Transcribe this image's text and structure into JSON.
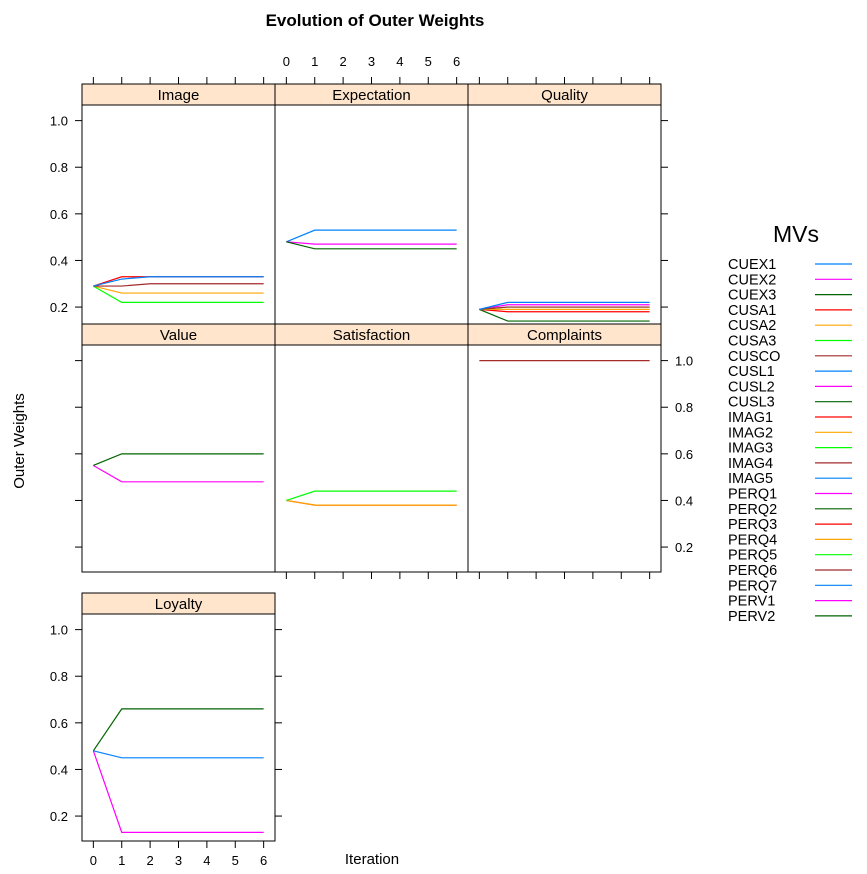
{
  "chart_data": {
    "type": "line",
    "title": "Evolution of Outer Weights",
    "xlabel": "Iteration",
    "ylabel": "Outer Weights",
    "x_ticks": [
      0,
      1,
      2,
      3,
      4,
      5,
      6
    ],
    "y_ticks": [
      0.2,
      0.4,
      0.6,
      0.8,
      1.0
    ],
    "xlim": [
      -0.4,
      6.4
    ],
    "ylim": [
      0.093,
      1.067
    ],
    "strip_color": "#ffe5cc",
    "legend": {
      "title": "MVs",
      "placement": "right"
    },
    "series_styles": [
      {
        "name": "CUEX1",
        "color": "#0080ff"
      },
      {
        "name": "CUEX2",
        "color": "#ff00ff"
      },
      {
        "name": "CUEX3",
        "color": "#006400"
      },
      {
        "name": "CUSA1",
        "color": "#ff0000"
      },
      {
        "name": "CUSA2",
        "color": "#ffa500"
      },
      {
        "name": "CUSA3",
        "color": "#00ff00"
      },
      {
        "name": "CUSCO",
        "color": "#a52a2a"
      },
      {
        "name": "CUSL1",
        "color": "#0080ff"
      },
      {
        "name": "CUSL2",
        "color": "#ff00ff"
      },
      {
        "name": "CUSL3",
        "color": "#006400"
      },
      {
        "name": "IMAG1",
        "color": "#ff0000"
      },
      {
        "name": "IMAG2",
        "color": "#ffa500"
      },
      {
        "name": "IMAG3",
        "color": "#00ff00"
      },
      {
        "name": "IMAG4",
        "color": "#a52a2a"
      },
      {
        "name": "IMAG5",
        "color": "#0080ff"
      },
      {
        "name": "PERQ1",
        "color": "#ff00ff"
      },
      {
        "name": "PERQ2",
        "color": "#006400"
      },
      {
        "name": "PERQ3",
        "color": "#ff0000"
      },
      {
        "name": "PERQ4",
        "color": "#ffa500"
      },
      {
        "name": "PERQ5",
        "color": "#00ff00"
      },
      {
        "name": "PERQ6",
        "color": "#a52a2a"
      },
      {
        "name": "PERQ7",
        "color": "#0080ff"
      },
      {
        "name": "PERV1",
        "color": "#ff00ff"
      },
      {
        "name": "PERV2",
        "color": "#006400"
      }
    ],
    "panels": [
      {
        "label": "Image",
        "series": [
          {
            "name": "IMAG1",
            "values": [
              0.29,
              0.33,
              0.33,
              0.33,
              0.33,
              0.33,
              0.33
            ]
          },
          {
            "name": "IMAG2",
            "values": [
              0.29,
              0.26,
              0.26,
              0.26,
              0.26,
              0.26,
              0.26
            ]
          },
          {
            "name": "IMAG3",
            "values": [
              0.29,
              0.22,
              0.22,
              0.22,
              0.22,
              0.22,
              0.22
            ]
          },
          {
            "name": "IMAG4",
            "values": [
              0.29,
              0.29,
              0.3,
              0.3,
              0.3,
              0.3,
              0.3
            ]
          },
          {
            "name": "IMAG5",
            "values": [
              0.29,
              0.32,
              0.33,
              0.33,
              0.33,
              0.33,
              0.33
            ]
          }
        ]
      },
      {
        "label": "Expectation",
        "series": [
          {
            "name": "CUEX1",
            "values": [
              0.48,
              0.53,
              0.53,
              0.53,
              0.53,
              0.53,
              0.53
            ]
          },
          {
            "name": "CUEX2",
            "values": [
              0.48,
              0.47,
              0.47,
              0.47,
              0.47,
              0.47,
              0.47
            ]
          },
          {
            "name": "CUEX3",
            "values": [
              0.48,
              0.45,
              0.45,
              0.45,
              0.45,
              0.45,
              0.45
            ]
          }
        ]
      },
      {
        "label": "Quality",
        "series": [
          {
            "name": "PERQ1",
            "values": [
              0.19,
              0.21,
              0.21,
              0.21,
              0.21,
              0.21,
              0.21
            ]
          },
          {
            "name": "PERQ2",
            "values": [
              0.19,
              0.14,
              0.14,
              0.14,
              0.14,
              0.14,
              0.14
            ]
          },
          {
            "name": "PERQ3",
            "values": [
              0.19,
              0.18,
              0.18,
              0.18,
              0.18,
              0.18,
              0.18
            ]
          },
          {
            "name": "PERQ4",
            "values": [
              0.19,
              0.19,
              0.19,
              0.19,
              0.19,
              0.19,
              0.19
            ]
          },
          {
            "name": "PERQ5",
            "values": [
              0.19,
              0.2,
              0.2,
              0.2,
              0.2,
              0.2,
              0.2
            ]
          },
          {
            "name": "PERQ6",
            "values": [
              0.19,
              0.2,
              0.2,
              0.2,
              0.2,
              0.2,
              0.2
            ]
          },
          {
            "name": "PERQ7",
            "values": [
              0.19,
              0.22,
              0.22,
              0.22,
              0.22,
              0.22,
              0.22
            ]
          }
        ]
      },
      {
        "label": "Value",
        "series": [
          {
            "name": "PERV1",
            "values": [
              0.55,
              0.48,
              0.48,
              0.48,
              0.48,
              0.48,
              0.48
            ]
          },
          {
            "name": "PERV2",
            "values": [
              0.55,
              0.6,
              0.6,
              0.6,
              0.6,
              0.6,
              0.6
            ]
          }
        ]
      },
      {
        "label": "Satisfaction",
        "series": [
          {
            "name": "CUSA1",
            "values": [
              0.4,
              0.38,
              0.38,
              0.38,
              0.38,
              0.38,
              0.38
            ]
          },
          {
            "name": "CUSA2",
            "values": [
              0.4,
              0.38,
              0.38,
              0.38,
              0.38,
              0.38,
              0.38
            ]
          },
          {
            "name": "CUSA3",
            "values": [
              0.4,
              0.44,
              0.44,
              0.44,
              0.44,
              0.44,
              0.44
            ]
          }
        ]
      },
      {
        "label": "Complaints",
        "series": [
          {
            "name": "CUSCO",
            "values": [
              1.0,
              1.0,
              1.0,
              1.0,
              1.0,
              1.0,
              1.0
            ]
          }
        ]
      },
      {
        "label": "Loyalty",
        "series": [
          {
            "name": "CUSL1",
            "values": [
              0.48,
              0.45,
              0.45,
              0.45,
              0.45,
              0.45,
              0.45
            ]
          },
          {
            "name": "CUSL2",
            "values": [
              0.48,
              0.13,
              0.13,
              0.13,
              0.13,
              0.13,
              0.13
            ]
          },
          {
            "name": "CUSL3",
            "values": [
              0.48,
              0.66,
              0.66,
              0.66,
              0.66,
              0.66,
              0.66
            ]
          }
        ]
      }
    ]
  }
}
